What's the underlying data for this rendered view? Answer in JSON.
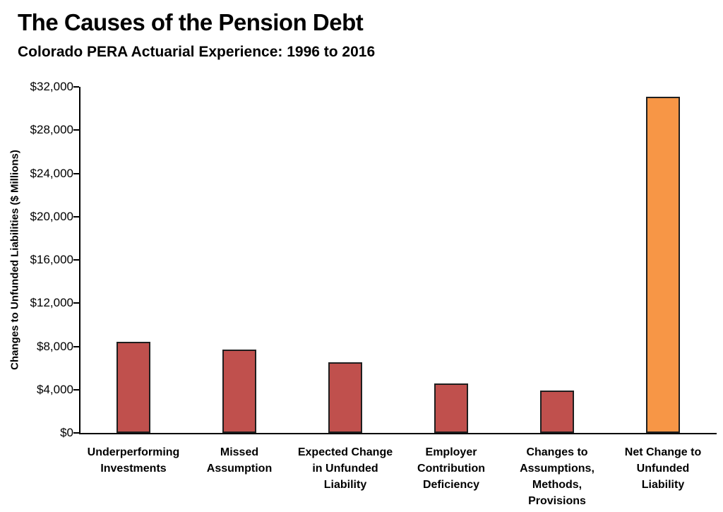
{
  "header": {
    "title": "The Causes of the Pension Debt",
    "subtitle": "Colorado PERA Actuarial Experience: 1996 to 2016"
  },
  "chart_data": {
    "type": "bar",
    "title": "The Causes of the Pension Debt",
    "subtitle": "Colorado PERA Actuarial Experience: 1996 to 2016",
    "xlabel": "",
    "ylabel": "Changes to Unfunded Liabilities ($ Millions)",
    "categories": [
      "Underperforming Investments",
      "Missed Assumption",
      "Expected Change in Unfunded Liability",
      "Employer Contribution Deficiency",
      "Changes to Assumptions, Methods, Provisions",
      "Net Change to Unfunded Liability"
    ],
    "category_lines": [
      [
        "Underperforming",
        "Investments"
      ],
      [
        "Missed",
        "Assumption"
      ],
      [
        "Expected Change",
        "in Unfunded",
        "Liability"
      ],
      [
        "Employer",
        "Contribution",
        "Deficiency"
      ],
      [
        "Changes to",
        "Assumptions,",
        "Methods,",
        "Provisions"
      ],
      [
        "Net Change to",
        "Unfunded",
        "Liability"
      ]
    ],
    "values": [
      8400,
      7700,
      6550,
      4600,
      3900,
      31100
    ],
    "bar_colors": [
      "#C0504D",
      "#C0504D",
      "#C0504D",
      "#C0504D",
      "#C0504D",
      "#F79646"
    ],
    "bar_border_color": "#1F1F1F",
    "axis_color": "#000000",
    "ylim": [
      0,
      32000
    ],
    "ytick_step": 4000,
    "ytick_labels": [
      "$0",
      "$4,000",
      "$8,000",
      "$12,000",
      "$16,000",
      "$20,000",
      "$24,000",
      "$28,000",
      "$32,000"
    ],
    "grid": false,
    "legend": "none"
  }
}
